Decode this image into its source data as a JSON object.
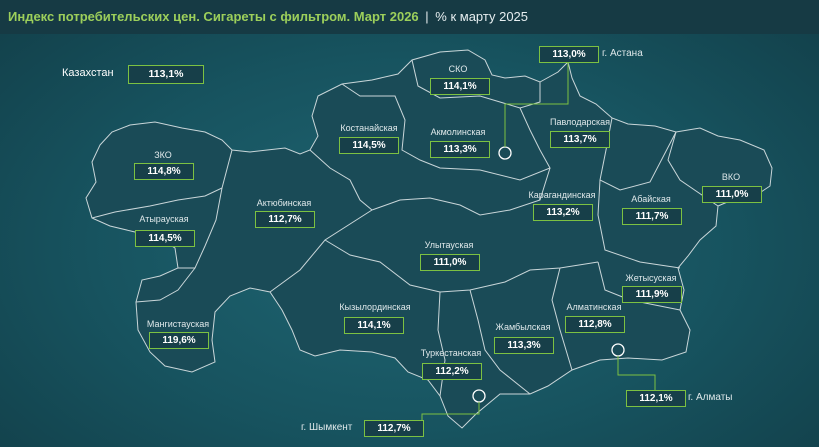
{
  "header": {
    "title": "Индекс потребительских цен. Сигареты с фильтром. Март 2026",
    "separator": "|",
    "subtitle": "% к марту 2025"
  },
  "country": {
    "name": "Казахстан",
    "value": "113,1%"
  },
  "regions": [
    {
      "id": "sko",
      "name": "СКО",
      "value": "114,1%"
    },
    {
      "id": "kostanay",
      "name": "Костанайская",
      "value": "114,5%"
    },
    {
      "id": "akmola",
      "name": "Акмолинская",
      "value": "113,3%"
    },
    {
      "id": "pavlodar",
      "name": "Павлодарская",
      "value": "113,7%"
    },
    {
      "id": "zko",
      "name": "ЗКО",
      "value": "114,8%"
    },
    {
      "id": "vko",
      "name": "ВКО",
      "value": "111,0%"
    },
    {
      "id": "aktobe",
      "name": "Актюбинская",
      "value": "112,7%"
    },
    {
      "id": "karaganda",
      "name": "Карагандинская",
      "value": "113,2%"
    },
    {
      "id": "abay",
      "name": "Абайская",
      "value": "111,7%"
    },
    {
      "id": "atyrau",
      "name": "Атырауская",
      "value": "114,5%"
    },
    {
      "id": "ulytau",
      "name": "Улытауская",
      "value": "111,0%"
    },
    {
      "id": "zhetysu",
      "name": "Жетысуская",
      "value": "111,9%"
    },
    {
      "id": "kyzylorda",
      "name": "Кызылординская",
      "value": "114,1%"
    },
    {
      "id": "almaty_reg",
      "name": "Алматинская",
      "value": "112,8%"
    },
    {
      "id": "mangystau",
      "name": "Мангистауская",
      "value": "119,6%"
    },
    {
      "id": "zhambyl",
      "name": "Жамбылская",
      "value": "113,3%"
    },
    {
      "id": "turkestan",
      "name": "Туркестанская",
      "value": "112,2%"
    }
  ],
  "cities": [
    {
      "id": "astana",
      "name": "г. Астана",
      "value": "113,0%"
    },
    {
      "id": "almaty",
      "name": "г. Алматы",
      "value": "112,1%"
    },
    {
      "id": "shymkent",
      "name": "г. Шымкент",
      "value": "112,7%"
    }
  ]
}
